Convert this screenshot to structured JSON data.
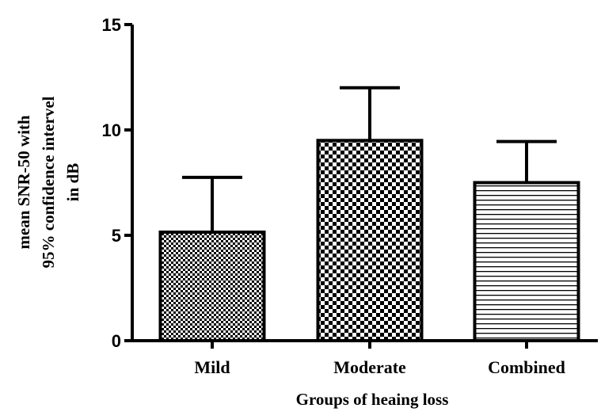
{
  "chart_data": {
    "type": "bar",
    "categories": [
      "Mild",
      "Moderate",
      "Combined"
    ],
    "values": [
      5.15,
      9.5,
      7.5
    ],
    "error_upper": [
      7.75,
      12.0,
      9.45
    ],
    "bar_patterns": [
      "fine-checker",
      "coarse-checker",
      "horizontal-lines"
    ],
    "xlabel": "Groups of heaing loss",
    "ylabel_lines": [
      "mean SNR-50 with",
      "95% confidence intervel",
      "in dB"
    ],
    "ylim": [
      0,
      15
    ],
    "yticks": [
      "0",
      "5",
      "10",
      "15"
    ],
    "colors": {
      "ink": "#000000",
      "fill": "#ffffff"
    }
  }
}
